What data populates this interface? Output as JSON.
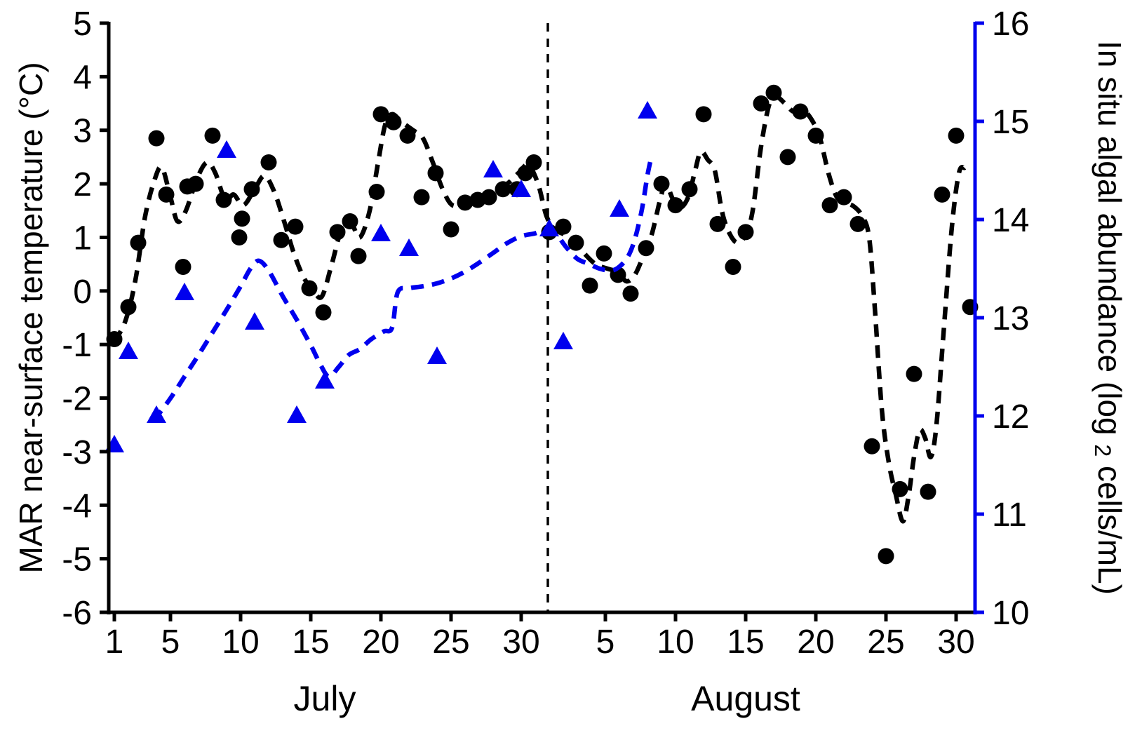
{
  "figure": {
    "background": "#ffffff"
  },
  "chart_data": {
    "type": "scatter",
    "title": "",
    "grid": false,
    "legend": "none",
    "x_axis": {
      "unit": "day of month",
      "ticks": [
        {
          "day": 1,
          "label": "1"
        },
        {
          "day": 5,
          "label": "5"
        },
        {
          "day": 10,
          "label": "10"
        },
        {
          "day": 15,
          "label": "15"
        },
        {
          "day": 20,
          "label": "20"
        },
        {
          "day": 25,
          "label": "25"
        },
        {
          "day": 30,
          "label": "30"
        },
        {
          "day": 36,
          "label": "5"
        },
        {
          "day": 41,
          "label": "10"
        },
        {
          "day": 46,
          "label": "15"
        },
        {
          "day": 51,
          "label": "20"
        },
        {
          "day": 56,
          "label": "25"
        },
        {
          "day": 61,
          "label": "30"
        }
      ],
      "month_labels": [
        {
          "label": "July",
          "center_day": 16
        },
        {
          "label": "August",
          "center_day": 46
        }
      ],
      "divider_day": 31.9
    },
    "y_left": {
      "label": "MAR near-surface temperature (°C)",
      "min": -6,
      "max": 5,
      "ticks": [
        5,
        4,
        3,
        2,
        1,
        0,
        -1,
        -2,
        -3,
        -4,
        -5,
        -6
      ],
      "color": "#000000"
    },
    "y_right": {
      "label_prefix": "In situ algal abundance (log",
      "label_sub": "2",
      "label_suffix": " cells/mL)",
      "min": 10,
      "max": 16,
      "ticks": [
        16,
        15,
        14,
        13,
        12,
        11,
        10
      ],
      "color": "#0000EE"
    },
    "series": [
      {
        "name": "temperature",
        "axis": "left",
        "marker": "circle",
        "line": "none",
        "color": "#000000",
        "points": [
          [
            1,
            -0.9
          ],
          [
            2,
            -0.3
          ],
          [
            2.7,
            0.9
          ],
          [
            4,
            2.85
          ],
          [
            4.7,
            1.8
          ],
          [
            5.9,
            0.45
          ],
          [
            6.2,
            1.95
          ],
          [
            6.8,
            2.0
          ],
          [
            8,
            2.9
          ],
          [
            8.8,
            1.7
          ],
          [
            9.9,
            1.0
          ],
          [
            10.1,
            1.35
          ],
          [
            10.8,
            1.9
          ],
          [
            12,
            2.4
          ],
          [
            12.9,
            0.95
          ],
          [
            13.9,
            1.2
          ],
          [
            14.9,
            0.05
          ],
          [
            15.9,
            -0.4
          ],
          [
            16.9,
            1.1
          ],
          [
            17.8,
            1.3
          ],
          [
            18.4,
            0.65
          ],
          [
            19.7,
            1.85
          ],
          [
            20,
            3.3
          ],
          [
            20.9,
            3.15
          ],
          [
            21.9,
            2.9
          ],
          [
            22.9,
            1.75
          ],
          [
            23.9,
            2.2
          ],
          [
            25,
            1.15
          ],
          [
            26,
            1.65
          ],
          [
            26.9,
            1.7
          ],
          [
            27.7,
            1.75
          ],
          [
            28.7,
            1.9
          ],
          [
            29.7,
            1.9
          ],
          [
            30.3,
            2.2
          ],
          [
            30.9,
            2.4
          ],
          [
            32,
            1.1
          ],
          [
            33,
            1.2
          ],
          [
            33.9,
            0.9
          ],
          [
            34.9,
            0.1
          ],
          [
            35.9,
            0.7
          ],
          [
            36.9,
            0.3
          ],
          [
            37.8,
            -0.05
          ],
          [
            38.9,
            0.8
          ],
          [
            40,
            2.0
          ],
          [
            41,
            1.6
          ],
          [
            42,
            1.9
          ],
          [
            43,
            3.3
          ],
          [
            44,
            1.25
          ],
          [
            45.1,
            0.45
          ],
          [
            46,
            1.1
          ],
          [
            47.1,
            3.5
          ],
          [
            48,
            3.7
          ],
          [
            49,
            2.5
          ],
          [
            49.9,
            3.35
          ],
          [
            51,
            2.9
          ],
          [
            52,
            1.6
          ],
          [
            53,
            1.75
          ],
          [
            54,
            1.25
          ],
          [
            55,
            -2.9
          ],
          [
            56,
            -4.95
          ],
          [
            57,
            -3.7
          ],
          [
            58,
            -1.55
          ],
          [
            59,
            -3.75
          ],
          [
            60,
            1.8
          ],
          [
            61,
            2.9
          ],
          [
            62,
            -0.3
          ]
        ]
      },
      {
        "name": "temperature_trend",
        "axis": "left",
        "marker": "none",
        "line": "dashed",
        "color": "#000000",
        "points": [
          [
            1,
            -0.95
          ],
          [
            1.8,
            -0.55
          ],
          [
            2.5,
            0.2
          ],
          [
            3.2,
            1.4
          ],
          [
            3.9,
            2.1
          ],
          [
            4.4,
            2.3
          ],
          [
            5,
            1.75
          ],
          [
            5.5,
            1.3
          ],
          [
            6.1,
            1.5
          ],
          [
            6.9,
            2.1
          ],
          [
            7.6,
            2.4
          ],
          [
            8.2,
            2.2
          ],
          [
            8.9,
            1.7
          ],
          [
            9.5,
            1.8
          ],
          [
            10.2,
            1.6
          ],
          [
            11,
            1.9
          ],
          [
            11.7,
            2.15
          ],
          [
            12.4,
            1.85
          ],
          [
            13.1,
            1.3
          ],
          [
            13.8,
            0.7
          ],
          [
            14.5,
            0.25
          ],
          [
            15.2,
            0.0
          ],
          [
            15.8,
            -0.1
          ],
          [
            16.5,
            0.5
          ],
          [
            17.2,
            1.15
          ],
          [
            17.9,
            1.25
          ],
          [
            18.5,
            1.0
          ],
          [
            19.2,
            1.5
          ],
          [
            19.8,
            2.4
          ],
          [
            20.3,
            3.1
          ],
          [
            20.8,
            3.3
          ],
          [
            21.5,
            3.15
          ],
          [
            22.3,
            3.0
          ],
          [
            23,
            2.85
          ],
          [
            23.7,
            2.4
          ],
          [
            24.4,
            1.9
          ],
          [
            25.1,
            1.6
          ],
          [
            26,
            1.65
          ],
          [
            27,
            1.72
          ],
          [
            28,
            1.85
          ],
          [
            29,
            2.0
          ],
          [
            29.8,
            2.2
          ],
          [
            30.5,
            2.35
          ],
          [
            31.2,
            2.0
          ],
          [
            31.8,
            1.4
          ],
          [
            32.4,
            1.15
          ],
          [
            33.1,
            1.05
          ],
          [
            33.8,
            0.92
          ],
          [
            34.5,
            0.7
          ],
          [
            35.3,
            0.5
          ],
          [
            36.1,
            0.42
          ],
          [
            36.9,
            0.35
          ],
          [
            37.5,
            0.18
          ],
          [
            38.1,
            0.3
          ],
          [
            38.7,
            0.65
          ],
          [
            39.3,
            1.05
          ],
          [
            39.9,
            1.7
          ],
          [
            40.3,
            2.0
          ],
          [
            40.8,
            1.72
          ],
          [
            41.3,
            1.55
          ],
          [
            41.9,
            1.75
          ],
          [
            42.4,
            2.25
          ],
          [
            42.8,
            2.6
          ],
          [
            43.3,
            2.45
          ],
          [
            43.8,
            2.25
          ],
          [
            44.3,
            1.5
          ],
          [
            44.8,
            1.1
          ],
          [
            45.4,
            0.9
          ],
          [
            46,
            1.05
          ],
          [
            46.5,
            1.5
          ],
          [
            47.1,
            2.7
          ],
          [
            47.7,
            3.5
          ],
          [
            48.2,
            3.62
          ],
          [
            48.8,
            3.5
          ],
          [
            49.4,
            3.35
          ],
          [
            50,
            3.4
          ],
          [
            50.7,
            3.2
          ],
          [
            51.3,
            2.85
          ],
          [
            51.9,
            2.2
          ],
          [
            52.5,
            1.75
          ],
          [
            53.1,
            1.65
          ],
          [
            53.7,
            1.58
          ],
          [
            54.3,
            1.4
          ],
          [
            54.8,
            1.0
          ],
          [
            55.2,
            -0.3
          ],
          [
            55.7,
            -2.2
          ],
          [
            56.2,
            -3.2
          ],
          [
            56.7,
            -3.8
          ],
          [
            57.2,
            -4.3
          ],
          [
            57.6,
            -3.85
          ],
          [
            58,
            -3.1
          ],
          [
            58.4,
            -2.6
          ],
          [
            58.8,
            -2.75
          ],
          [
            59.2,
            -3.1
          ],
          [
            59.6,
            -2.5
          ],
          [
            60.1,
            -0.8
          ],
          [
            60.7,
            1.2
          ],
          [
            61.2,
            2.2
          ],
          [
            61.6,
            2.3
          ]
        ]
      },
      {
        "name": "algal_abundance",
        "axis": "right",
        "marker": "triangle",
        "line": "none",
        "color": "#0000EE",
        "points": [
          [
            1,
            11.7
          ],
          [
            2,
            12.65
          ],
          [
            4,
            12.0
          ],
          [
            6,
            13.25
          ],
          [
            9,
            14.7
          ],
          [
            11,
            12.95
          ],
          [
            14,
            12.0
          ],
          [
            16,
            12.35
          ],
          [
            20,
            13.85
          ],
          [
            22,
            13.7
          ],
          [
            24,
            12.6
          ],
          [
            28,
            14.5
          ],
          [
            30,
            14.3
          ],
          [
            32,
            13.9
          ],
          [
            33,
            12.75
          ],
          [
            37,
            14.1
          ],
          [
            39,
            15.1
          ]
        ]
      },
      {
        "name": "algal_abundance_trend",
        "axis": "right",
        "marker": "none",
        "line": "dashed",
        "color": "#0000EE",
        "points": [
          [
            3.8,
            11.95
          ],
          [
            5,
            12.18
          ],
          [
            6,
            12.4
          ],
          [
            7,
            12.62
          ],
          [
            8,
            12.85
          ],
          [
            9,
            13.08
          ],
          [
            10,
            13.32
          ],
          [
            10.7,
            13.5
          ],
          [
            11.3,
            13.58
          ],
          [
            12,
            13.48
          ],
          [
            13,
            13.22
          ],
          [
            14,
            12.98
          ],
          [
            15,
            12.72
          ],
          [
            15.7,
            12.52
          ],
          [
            16.3,
            12.4
          ],
          [
            17,
            12.5
          ],
          [
            17.7,
            12.62
          ],
          [
            18.5,
            12.68
          ],
          [
            19.3,
            12.78
          ],
          [
            20.2,
            12.86
          ],
          [
            20.8,
            12.9
          ],
          [
            21.2,
            13.26
          ],
          [
            22,
            13.3
          ],
          [
            23,
            13.32
          ],
          [
            24,
            13.35
          ],
          [
            25,
            13.4
          ],
          [
            26,
            13.47
          ],
          [
            27,
            13.56
          ],
          [
            28,
            13.66
          ],
          [
            29,
            13.76
          ],
          [
            30,
            13.83
          ],
          [
            31,
            13.86
          ],
          [
            31.8,
            13.9
          ],
          [
            32.5,
            13.85
          ],
          [
            33.2,
            13.72
          ],
          [
            34,
            13.6
          ],
          [
            34.8,
            13.55
          ],
          [
            35.6,
            13.5
          ],
          [
            36.4,
            13.48
          ],
          [
            37,
            13.52
          ],
          [
            37.6,
            13.62
          ],
          [
            38.1,
            13.8
          ],
          [
            38.6,
            14.1
          ],
          [
            39,
            14.45
          ],
          [
            39.3,
            14.65
          ]
        ]
      }
    ]
  }
}
